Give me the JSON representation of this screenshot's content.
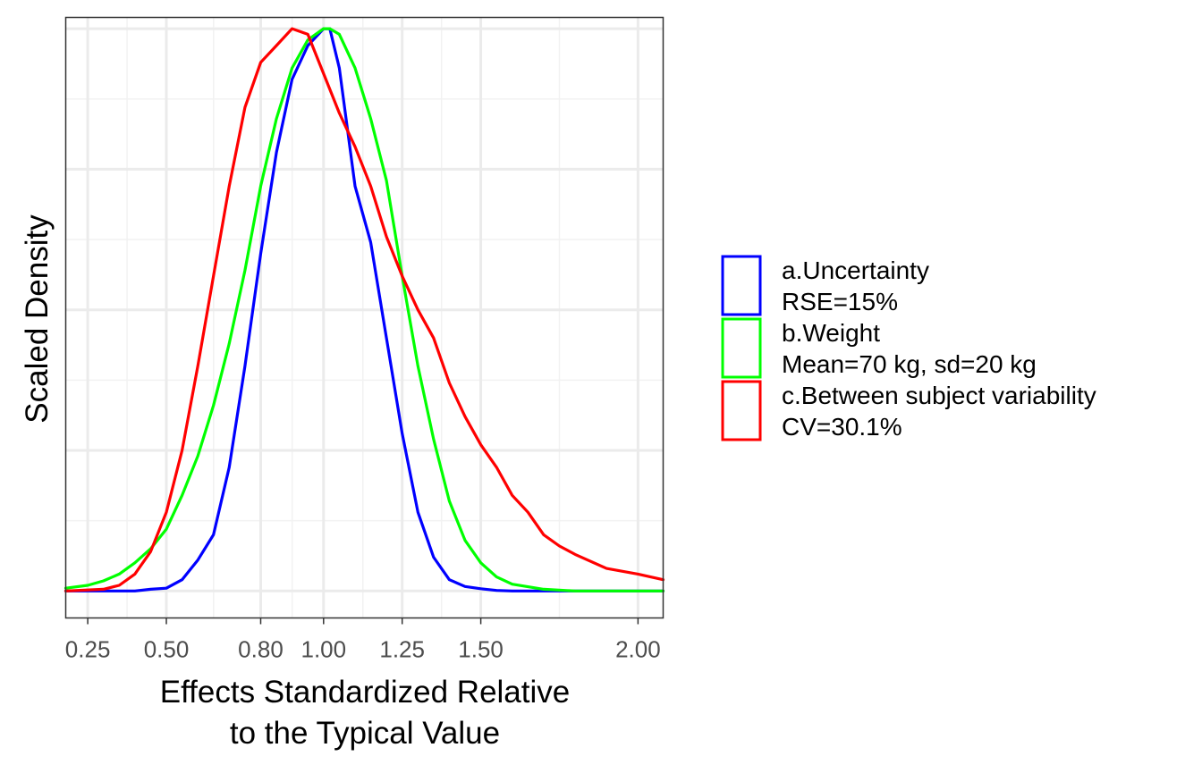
{
  "chart_data": {
    "type": "line",
    "title": "",
    "xlabel": [
      "Effects Standardized Relative",
      "to the Typical Value"
    ],
    "ylabel": "Scaled Density",
    "xlim": [
      0.18,
      2.08
    ],
    "ylim": [
      -0.048,
      1.02
    ],
    "x_ticks": [
      0.25,
      0.5,
      0.8,
      1.0,
      1.25,
      1.5,
      2.0
    ],
    "x_tick_labels": [
      "0.25",
      "0.50",
      "0.80",
      "1.00",
      "1.25",
      "1.50",
      "2.00"
    ],
    "y_tick_labels_shown": false,
    "grid": true,
    "legend_position": "right",
    "series": [
      {
        "name": [
          "a.Uncertainty",
          "RSE=15%"
        ],
        "color": "#0000ff",
        "x": [
          0.18,
          0.4,
          0.45,
          0.5,
          0.55,
          0.6,
          0.65,
          0.7,
          0.75,
          0.8,
          0.85,
          0.9,
          0.95,
          1.0,
          1.02,
          1.05,
          1.1,
          1.15,
          1.2,
          1.25,
          1.3,
          1.35,
          1.4,
          1.45,
          1.5,
          1.55,
          1.6,
          1.7,
          2.08
        ],
        "y": [
          0.0,
          0.0,
          0.003,
          0.005,
          0.02,
          0.055,
          0.1,
          0.22,
          0.4,
          0.6,
          0.78,
          0.91,
          0.97,
          1.0,
          1.0,
          0.93,
          0.72,
          0.62,
          0.45,
          0.28,
          0.14,
          0.06,
          0.02,
          0.008,
          0.004,
          0.001,
          0.0,
          0.0,
          0.0
        ]
      },
      {
        "name": [
          "b.Weight",
          "Mean=70 kg, sd=20 kg"
        ],
        "color": "#00ff00",
        "x": [
          0.18,
          0.25,
          0.3,
          0.35,
          0.4,
          0.45,
          0.5,
          0.55,
          0.6,
          0.65,
          0.7,
          0.75,
          0.8,
          0.85,
          0.9,
          0.95,
          1.0,
          1.02,
          1.05,
          1.1,
          1.15,
          1.2,
          1.25,
          1.3,
          1.35,
          1.4,
          1.45,
          1.5,
          1.55,
          1.6,
          1.7,
          1.8,
          2.08
        ],
        "y": [
          0.005,
          0.01,
          0.018,
          0.03,
          0.05,
          0.075,
          0.11,
          0.17,
          0.24,
          0.33,
          0.44,
          0.57,
          0.72,
          0.84,
          0.93,
          0.98,
          1.0,
          1.0,
          0.99,
          0.93,
          0.84,
          0.73,
          0.56,
          0.4,
          0.27,
          0.16,
          0.09,
          0.05,
          0.025,
          0.012,
          0.003,
          0.0,
          0.0
        ]
      },
      {
        "name": [
          "c.Between subject variability",
          "CV=30.1%"
        ],
        "color": "#ff0000",
        "x": [
          0.18,
          0.3,
          0.35,
          0.4,
          0.45,
          0.5,
          0.55,
          0.6,
          0.65,
          0.7,
          0.75,
          0.8,
          0.85,
          0.9,
          0.95,
          1.0,
          1.05,
          1.1,
          1.15,
          1.2,
          1.25,
          1.3,
          1.35,
          1.4,
          1.45,
          1.5,
          1.55,
          1.6,
          1.65,
          1.7,
          1.75,
          1.8,
          1.9,
          2.0,
          2.08
        ],
        "y": [
          0.0,
          0.003,
          0.01,
          0.03,
          0.07,
          0.14,
          0.25,
          0.4,
          0.56,
          0.72,
          0.86,
          0.94,
          0.97,
          1.0,
          0.99,
          0.92,
          0.85,
          0.79,
          0.72,
          0.63,
          0.56,
          0.5,
          0.45,
          0.37,
          0.31,
          0.26,
          0.22,
          0.17,
          0.14,
          0.1,
          0.08,
          0.065,
          0.04,
          0.03,
          0.02
        ]
      }
    ]
  }
}
